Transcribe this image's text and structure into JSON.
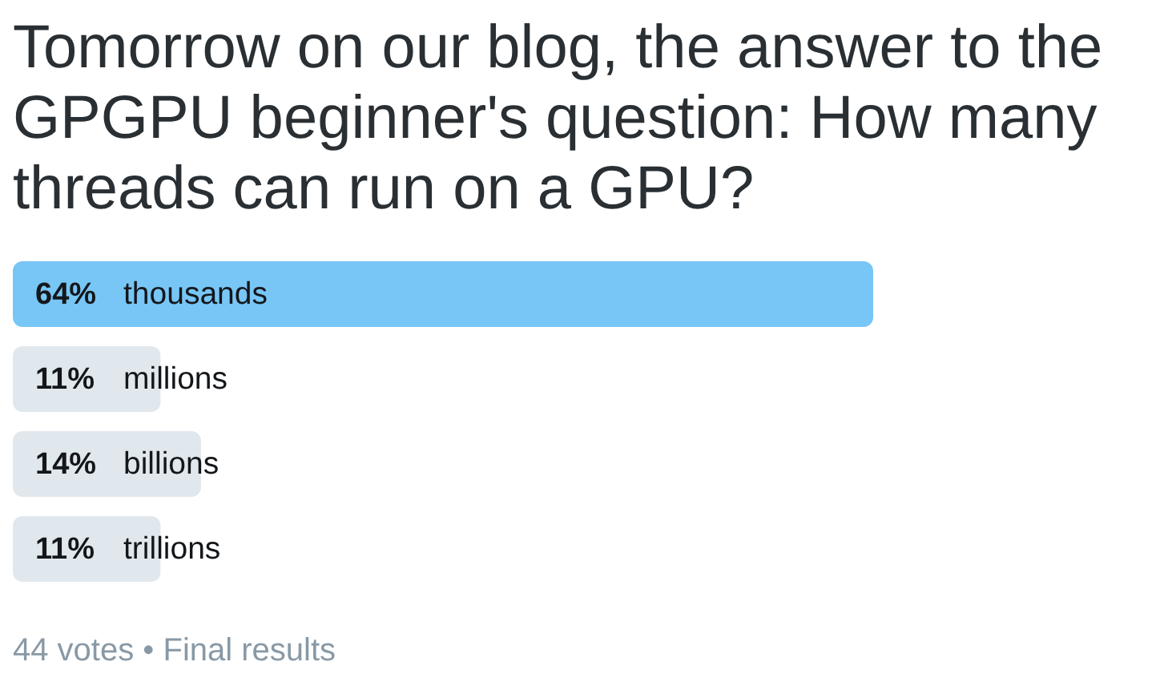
{
  "chart_data": {
    "type": "bar",
    "orientation": "horizontal",
    "title": "Tomorrow on our blog, the answer to the GPGPU beginner's question: How many threads can run on a GPU?",
    "categories": [
      "thousands",
      "millions",
      "billions",
      "trillions"
    ],
    "values": [
      64,
      11,
      14,
      11
    ],
    "colors": [
      "#77c6f6",
      "#e1e8ed",
      "#e1e8ed",
      "#e1e8ed"
    ],
    "value_labels": [
      "64%",
      "11%",
      "14%",
      "11%"
    ],
    "tick_labels": "y",
    "annotations": [
      "44 votes • Final results"
    ]
  }
}
